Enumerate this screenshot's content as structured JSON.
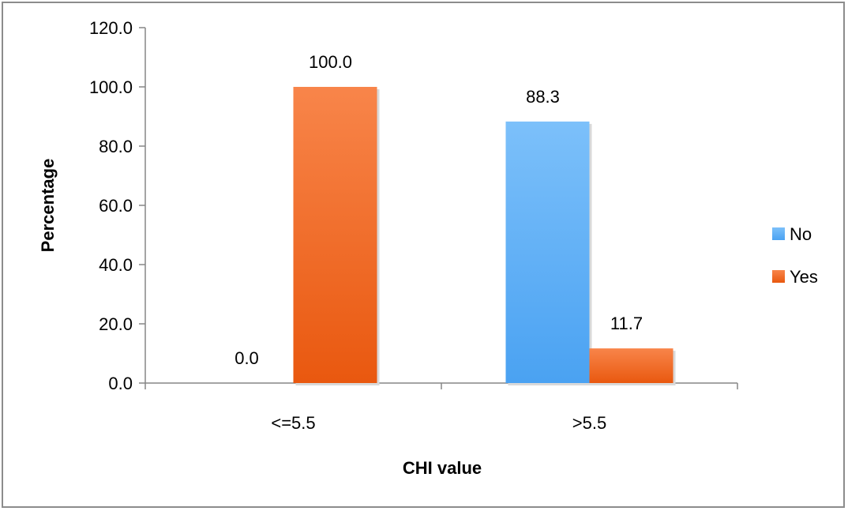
{
  "chart_data": {
    "type": "bar",
    "title": "",
    "xlabel": "CHI value",
    "ylabel": "Percentage",
    "categories": [
      "<=5.5",
      ">5.5"
    ],
    "series": [
      {
        "name": "No",
        "values": [
          0.0,
          88.3
        ],
        "labels": [
          "0.0",
          "88.3"
        ],
        "color": "#5aaef5"
      },
      {
        "name": "Yes",
        "values": [
          100.0,
          11.7
        ],
        "labels": [
          "100.0",
          "11.7"
        ],
        "color": "#f46a22"
      }
    ],
    "ylim": [
      0,
      120
    ],
    "yticks": [
      "0.0",
      "20.0",
      "40.0",
      "60.0",
      "80.0",
      "100.0",
      "120.0"
    ],
    "grid": false,
    "legend_position": "right"
  }
}
